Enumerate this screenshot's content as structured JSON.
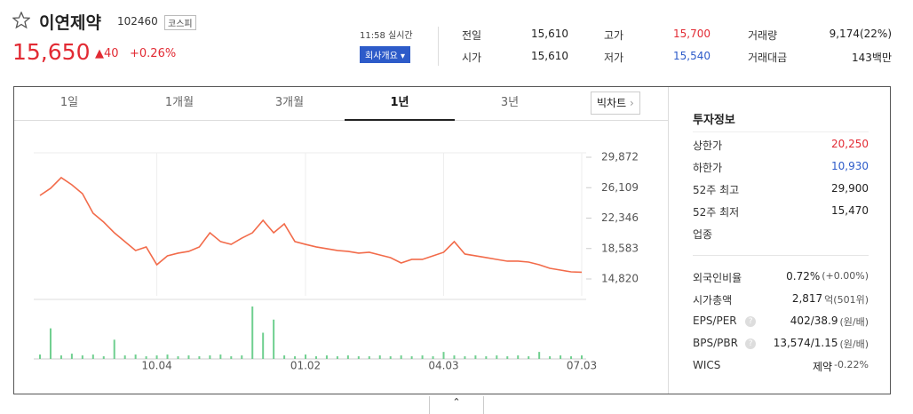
{
  "header": {
    "name": "이연제약",
    "code": "102460",
    "market": "코스피",
    "price": "15,650",
    "change": "40",
    "change_rate": "+0.26%",
    "time": "11:58 실시간",
    "company_button": "회사개요"
  },
  "quote": {
    "rows": [
      [
        {
          "label": "전일",
          "value": "15,610"
        },
        {
          "label": "고가",
          "value": "15,700"
        },
        {
          "label": "거래량",
          "value": "9,174(22%)"
        }
      ],
      [
        {
          "label": "시가",
          "value": "15,610"
        },
        {
          "label": "저가",
          "value": "15,540"
        },
        {
          "label": "거래대금",
          "value": "143백만"
        }
      ]
    ]
  },
  "tabs": {
    "items": [
      "1일",
      "1개월",
      "3개월",
      "1년",
      "3년"
    ],
    "active": 3,
    "big_chart": "빅차트"
  },
  "chart_data": {
    "type": "line",
    "categories": [
      null,
      null,
      null,
      null,
      null,
      null,
      null,
      null,
      null,
      null,
      null,
      "10.04",
      null,
      null,
      null,
      null,
      null,
      null,
      null,
      null,
      null,
      null,
      null,
      null,
      null,
      "01.02",
      null,
      null,
      null,
      null,
      null,
      null,
      null,
      null,
      null,
      null,
      null,
      null,
      "04.03",
      null,
      null,
      null,
      null,
      null,
      null,
      null,
      null,
      null,
      null,
      null,
      null,
      "07.03"
    ],
    "series": [
      {
        "color": "#f26b4a",
        "values": [
          25150,
          26030,
          27350,
          26470,
          25370,
          22950,
          21850,
          20530,
          19440,
          18340,
          18780,
          16580,
          17680,
          18010,
          18230,
          18780,
          20530,
          19440,
          19100,
          19870,
          20530,
          22070,
          20530,
          21630,
          19440,
          19100,
          18780,
          18560,
          18340,
          18230,
          18010,
          18120,
          17790,
          17460,
          16800,
          17240,
          17240,
          17680,
          18120,
          19440,
          17900,
          17680,
          17460,
          17240,
          17020,
          17020,
          16910,
          16580,
          16140,
          15920,
          15700,
          15650
        ]
      }
    ],
    "volume": {
      "color": "#6fcf8f",
      "ylim": [
        0,
        60
      ],
      "values": [
        5,
        35,
        4,
        6,
        4,
        5,
        3,
        22,
        4,
        5,
        3,
        4,
        5,
        3,
        4,
        3,
        4,
        5,
        3,
        4,
        60,
        30,
        45,
        4,
        3,
        5,
        3,
        4,
        3,
        4,
        3,
        3,
        4,
        3,
        4,
        3,
        4,
        3,
        8,
        4,
        3,
        4,
        3,
        4,
        3,
        4,
        3,
        8,
        3,
        4,
        3,
        4
      ]
    },
    "ylim": [
      12733,
      31740
    ],
    "yticks": [
      {
        "value": 29872,
        "label": "29,872"
      },
      {
        "value": 26109,
        "label": "26,109"
      },
      {
        "value": 22346,
        "label": "22,346"
      },
      {
        "value": 18583,
        "label": "18,583"
      },
      {
        "value": 14820,
        "label": "14,820"
      }
    ],
    "grid": true
  },
  "invest": {
    "title": "투자정보",
    "limits": [
      {
        "label": "상한가",
        "value": "20,250",
        "tone": "up"
      },
      {
        "label": "하한가",
        "value": "10,930",
        "tone": "down"
      },
      {
        "label": "52주 최고",
        "value": "29,900"
      },
      {
        "label": "52주 최저",
        "value": "15,470"
      },
      {
        "label": "업종"
      }
    ],
    "metrics": [
      {
        "label": "외국인비율",
        "value": "0.72%",
        "sub": "(+0.00%)"
      },
      {
        "label": "시가총액",
        "value": "2,817",
        "sub": "억(501위)"
      },
      {
        "label": "EPS/PER",
        "help": "?",
        "value": "402/38.9",
        "sub": "(원/배)"
      },
      {
        "label": "BPS/PBR",
        "help": "?",
        "value": "13,574/1.15",
        "sub": "(원/배)"
      },
      {
        "label": "WICS",
        "value": "제약",
        "sub": "-0.22%",
        "sub_tone": "down"
      }
    ]
  }
}
